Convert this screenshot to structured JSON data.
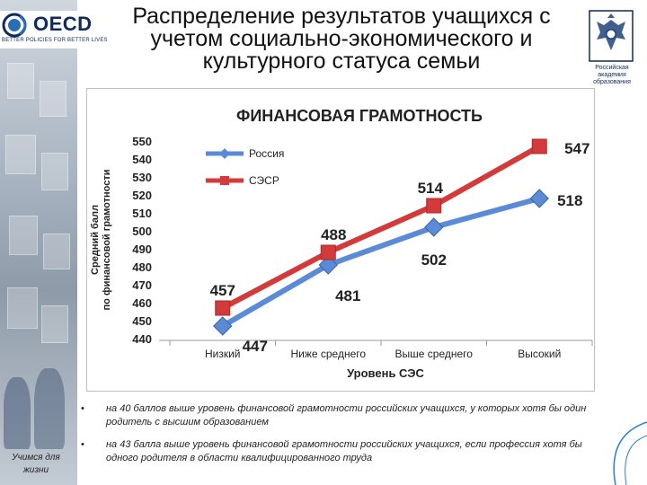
{
  "header": {
    "title_lines": [
      "Распределение результатов  учащихся с",
      "учетом социально-экономического и",
      "культурного статуса семьи"
    ]
  },
  "oecd": {
    "name": "OECD",
    "tagline": "BETTER POLICIES FOR BETTER LIVES"
  },
  "academy": {
    "lines": [
      "Российская",
      "академия",
      "образования"
    ]
  },
  "sidebar": {
    "slogan_lines": [
      "Учимся для",
      "жизни"
    ]
  },
  "chart_data": {
    "type": "line",
    "title": "ФИНАНСОВАЯ ГРАМОТНОСТЬ",
    "xlabel": "Уровень СЭС",
    "ylabel_lines": [
      "Средний балл",
      "по финансовой грамотности"
    ],
    "categories": [
      "Низкий",
      "Ниже среднего",
      "Выше среднего",
      "Высокий"
    ],
    "ylim": [
      440,
      550
    ],
    "yticks": [
      440,
      450,
      460,
      470,
      480,
      490,
      500,
      510,
      520,
      530,
      540,
      550
    ],
    "grid": false,
    "legend_position": "top-left",
    "series": [
      {
        "name": "Россия",
        "values": [
          447,
          481,
          502,
          518
        ],
        "color": "#5b8bd6",
        "marker": "diamond"
      },
      {
        "name": "СЭСР",
        "values": [
          457,
          488,
          514,
          547
        ],
        "color": "#d43a3a",
        "marker": "square"
      }
    ],
    "value_labels": {
      "Россия": [
        "447",
        "481",
        "502",
        "518"
      ],
      "СЭСР": [
        "457",
        "488",
        "514",
        "547"
      ]
    }
  },
  "notes": [
    "на 40 баллов выше уровень финансовой грамотности российских учащихся, у которых хотя бы один родитель с высшим образованием",
    "на 43 балла выше уровень финансовой грамотности российских учащихся, если профессия хотя бы одного родителя в области квалифицированного труда"
  ],
  "colors": {
    "russia": "#5b8bd6",
    "sesr": "#d43a3a",
    "oecd_navy": "#0f2a5e"
  }
}
